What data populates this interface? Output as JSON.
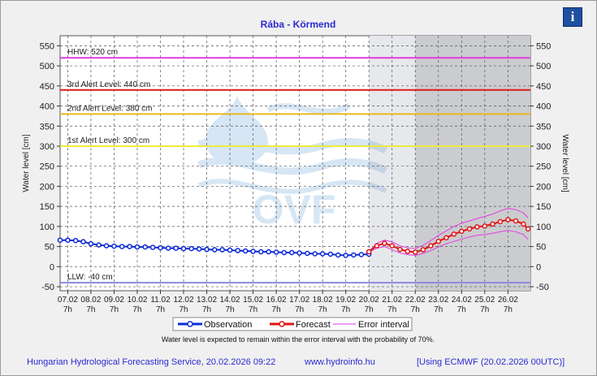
{
  "header": {
    "info_icon": "info-icon",
    "info_label": "i"
  },
  "footer": {
    "provider": "Hungarian Hydrological Forecasting Service, 20.02.2026 09:22",
    "website": "www.hydroinfo.hu",
    "model": "[Using ECMWF (20.02.2026  00UTC)]"
  },
  "chart_data": {
    "type": "line",
    "title": "Rába - Körmend",
    "ylabel": "Water level [cm]",
    "ylabel_right": "Water level [cm]",
    "ylim": [
      -60,
      575
    ],
    "yticks": [
      -50,
      0,
      50,
      100,
      150,
      200,
      250,
      300,
      350,
      400,
      450,
      500,
      550
    ],
    "xlim": [
      0,
      20.3
    ],
    "xticks": [
      {
        "x": 0.33,
        "label": "07.02",
        "sub": "7h"
      },
      {
        "x": 1.33,
        "label": "08.02",
        "sub": "7h"
      },
      {
        "x": 2.33,
        "label": "09.02",
        "sub": "7h"
      },
      {
        "x": 3.33,
        "label": "10.02",
        "sub": "7h"
      },
      {
        "x": 4.33,
        "label": "11.02",
        "sub": "7h"
      },
      {
        "x": 5.33,
        "label": "12.02",
        "sub": "7h"
      },
      {
        "x": 6.33,
        "label": "13.02",
        "sub": "7h"
      },
      {
        "x": 7.33,
        "label": "14.02",
        "sub": "7h"
      },
      {
        "x": 8.33,
        "label": "15.02",
        "sub": "7h"
      },
      {
        "x": 9.33,
        "label": "16.02",
        "sub": "7h"
      },
      {
        "x": 10.33,
        "label": "17.02",
        "sub": "7h"
      },
      {
        "x": 11.33,
        "label": "18.02",
        "sub": "7h"
      },
      {
        "x": 12.33,
        "label": "19.02",
        "sub": "7h"
      },
      {
        "x": 13.33,
        "label": "20.02",
        "sub": "7h"
      },
      {
        "x": 14.33,
        "label": "21.02",
        "sub": "7h"
      },
      {
        "x": 15.33,
        "label": "22.02",
        "sub": "7h"
      },
      {
        "x": 16.33,
        "label": "23.02",
        "sub": "7h"
      },
      {
        "x": 17.33,
        "label": "24.02",
        "sub": "7h"
      },
      {
        "x": 18.33,
        "label": "25.02",
        "sub": "7h"
      },
      {
        "x": 19.33,
        "label": "26.02",
        "sub": "7h"
      }
    ],
    "shaded_regions": [
      {
        "x0": 13.33,
        "x1": 15.33,
        "color": "#e7e8ec"
      },
      {
        "x0": 15.33,
        "x1": 20.3,
        "color": "#cbcccf"
      }
    ],
    "alert_levels": [
      {
        "value": 520,
        "label": "HHW: 520 cm",
        "color": "#e23ce2"
      },
      {
        "value": 440,
        "label": "3rd Alert Level: 440 cm",
        "color": "#dd1a1a"
      },
      {
        "value": 380,
        "label": "2nd Alert Level: 380 cm",
        "color": "#e8b824"
      },
      {
        "value": 300,
        "label": "1st Alert Level: 300 cm",
        "color": "#ecec3a"
      },
      {
        "value": -40,
        "label": "LLW: -40 cm",
        "color": "#8a8ae0"
      }
    ],
    "series": [
      {
        "name": "Observation",
        "color": "#0b2ad6",
        "x": [
          0,
          0.33,
          0.67,
          1,
          1.33,
          1.67,
          2,
          2.33,
          2.67,
          3,
          3.33,
          3.67,
          4,
          4.33,
          4.67,
          5,
          5.33,
          5.67,
          6,
          6.33,
          6.67,
          7,
          7.33,
          7.67,
          8,
          8.33,
          8.67,
          9,
          9.33,
          9.67,
          10,
          10.33,
          10.67,
          11,
          11.33,
          11.67,
          12,
          12.33,
          12.67,
          13,
          13.33
        ],
        "y": [
          66,
          66,
          65,
          62,
          57,
          54,
          52,
          51,
          50,
          50,
          49,
          49,
          48,
          47,
          46,
          46,
          45,
          45,
          44,
          43,
          42,
          42,
          41,
          40,
          39,
          38,
          37,
          37,
          36,
          35,
          35,
          34,
          33,
          32,
          32,
          31,
          29,
          28,
          29,
          30,
          31
        ]
      },
      {
        "name": "Forecast",
        "color": "#e01414",
        "x": [
          13.33,
          13.67,
          14,
          14.33,
          14.67,
          15,
          15.33,
          15.67,
          16,
          16.33,
          16.67,
          17,
          17.33,
          17.67,
          18,
          18.33,
          18.67,
          19,
          19.33,
          19.67,
          20,
          20.2
        ],
        "y": [
          37,
          52,
          58,
          52,
          43,
          38,
          36,
          42,
          52,
          63,
          72,
          81,
          88,
          94,
          99,
          101,
          106,
          112,
          117,
          114,
          106,
          94
        ]
      },
      {
        "name": "Error interval",
        "color": "#e23ce2",
        "upper": [
          38,
          58,
          66,
          62,
          52,
          47,
          45,
          53,
          65,
          78,
          89,
          100,
          108,
          114,
          120,
          125,
          131,
          139,
          145,
          142,
          134,
          122
        ],
        "lower": [
          36,
          46,
          50,
          42,
          34,
          30,
          28,
          33,
          40,
          49,
          57,
          63,
          68,
          74,
          78,
          80,
          83,
          87,
          90,
          87,
          80,
          68
        ]
      }
    ],
    "legend": {
      "placement": "bottom-center",
      "entries": [
        "Observation",
        "Forecast",
        "Error interval"
      ]
    },
    "note": "Water level is expected to remain within the error interval with the probability of 70%.",
    "watermark": "OVF",
    "grid": true
  }
}
